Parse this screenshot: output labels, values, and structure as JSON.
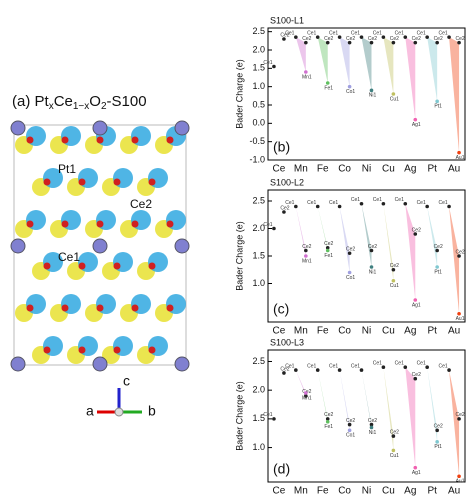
{
  "structure": {
    "title_parts": [
      "(a) Pt",
      "x",
      "Ce",
      "1−x",
      "O",
      "2",
      "-S100"
    ],
    "atom_labels": [
      "Pt1",
      "Ce2",
      "Ce1"
    ],
    "axes": [
      "a",
      "b",
      "c"
    ]
  },
  "chart_data": [
    {
      "type": "scatter",
      "title": "S100-L1",
      "panel_label": "(b)",
      "ylabel": "Bader Charge (e)",
      "categories": [
        "Ce",
        "Mn",
        "Fe",
        "Co",
        "Ni",
        "Cu",
        "Ag",
        "Pt",
        "Au"
      ],
      "category_colors": [
        "#222222",
        "#d070d0",
        "#60c060",
        "#a0a0e0",
        "#408080",
        "#c0c060",
        "#f060b0",
        "#80c8d0",
        "#f04010"
      ],
      "ylim": [
        -1.0,
        2.6
      ],
      "yticks": [
        {
          "value": -1.0,
          "label": "-1.0"
        },
        {
          "value": -0.5,
          "label": "-0.5"
        },
        {
          "value": 0.0,
          "label": "0.0"
        },
        {
          "value": 0.5,
          "label": "0.5"
        },
        {
          "value": 1.0,
          "label": "1.0"
        },
        {
          "value": 1.5,
          "label": "1.5"
        },
        {
          "value": 2.0,
          "label": "2.0"
        },
        {
          "value": 2.5,
          "label": "2.5"
        }
      ],
      "series": [
        {
          "values": [
            1.55,
            2.35,
            2.35,
            2.35,
            2.35,
            2.35,
            2.35,
            2.35,
            2.35
          ],
          "point_labels": [
            "Ce1",
            "Ce1",
            "Ce1",
            "Ce1",
            "Ce1",
            "Ce1",
            "Ce1",
            "Ce1",
            "Ce1"
          ]
        },
        {
          "values": [
            2.3,
            2.2,
            2.2,
            2.2,
            2.2,
            2.2,
            2.2,
            2.2,
            2.2
          ],
          "point_labels": [
            "Ce2",
            "Ce2",
            "Ce2",
            "Ce2",
            "Ce2",
            "Ce2",
            "Ce2",
            "Ce2",
            "Ce2"
          ]
        },
        {
          "values": [
            null,
            1.4,
            1.1,
            1.0,
            0.9,
            0.8,
            0.1,
            0.6,
            -0.8
          ],
          "point_labels": [
            null,
            "Mn1",
            "Fe1",
            "Co1",
            "Ni1",
            "Cu1",
            "Ag1",
            "Pt1",
            "Au1"
          ]
        }
      ]
    },
    {
      "type": "scatter",
      "title": "S100-L2",
      "panel_label": "(c)",
      "ylabel": "Bader Charge (e)",
      "categories": [
        "Ce",
        "Mn",
        "Fe",
        "Co",
        "Ni",
        "Cu",
        "Ag",
        "Pt",
        "Au"
      ],
      "category_colors": [
        "#222222",
        "#d070d0",
        "#60c060",
        "#a0a0e0",
        "#408080",
        "#c0c060",
        "#f060b0",
        "#80c8d0",
        "#f04010"
      ],
      "ylim": [
        0.3,
        2.7
      ],
      "yticks": [
        {
          "value": 1.0,
          "label": "1.0"
        },
        {
          "value": 1.5,
          "label": "1.5"
        },
        {
          "value": 2.0,
          "label": "2.0"
        },
        {
          "value": 2.5,
          "label": "2.5"
        }
      ],
      "series": [
        {
          "values": [
            2.0,
            2.4,
            2.4,
            2.4,
            2.45,
            2.45,
            2.45,
            2.4,
            2.4
          ],
          "point_labels": [
            "Ce1",
            "Ce1",
            "Ce1",
            "Ce1",
            "Ce1",
            "Ce1",
            "Ce1",
            "Ce1",
            "Ce1"
          ]
        },
        {
          "values": [
            2.3,
            1.6,
            1.65,
            1.55,
            1.6,
            1.25,
            1.9,
            1.6,
            1.5
          ],
          "point_labels": [
            "Ce2",
            "Ce2",
            "Ce2",
            "Ce2",
            "Ce2",
            "Ce2",
            "Ce2",
            "Ce2",
            "Ce2"
          ]
        },
        {
          "values": [
            null,
            1.5,
            1.6,
            1.2,
            1.3,
            1.05,
            0.7,
            1.3,
            0.45
          ],
          "point_labels": [
            null,
            "Mn1",
            "Fe1",
            "Co1",
            "Ni1",
            "Cu1",
            "Ag1",
            "Pt1",
            "Au1"
          ]
        }
      ]
    },
    {
      "type": "scatter",
      "title": "S100-L3",
      "panel_label": "(d)",
      "ylabel": "Bader Charge (e)",
      "categories": [
        "Ce",
        "Mn",
        "Fe",
        "Co",
        "Ni",
        "Cu",
        "Ag",
        "Pt",
        "Au"
      ],
      "category_colors": [
        "#222222",
        "#d070d0",
        "#60c060",
        "#a0a0e0",
        "#408080",
        "#c0c060",
        "#f060b0",
        "#80c8d0",
        "#f04010"
      ],
      "ylim": [
        0.4,
        2.7
      ],
      "yticks": [
        {
          "value": 1.0,
          "label": "1.0"
        },
        {
          "value": 1.5,
          "label": "1.5"
        },
        {
          "value": 2.0,
          "label": "2.0"
        },
        {
          "value": 2.5,
          "label": "2.5"
        }
      ],
      "series": [
        {
          "values": [
            1.5,
            2.35,
            2.35,
            2.35,
            2.35,
            2.4,
            2.4,
            2.4,
            2.35
          ],
          "point_labels": [
            "Ce1",
            "Ce1",
            "Ce1",
            "Ce1",
            "Ce1",
            "Ce1",
            "Ce1",
            "Ce1",
            "Ce1"
          ]
        },
        {
          "values": [
            2.3,
            1.9,
            1.5,
            1.4,
            1.4,
            1.2,
            2.2,
            1.3,
            1.5
          ],
          "point_labels": [
            "Ce2",
            "Ce2",
            "Ce2",
            "Ce2",
            "Ce2",
            "Ce2",
            "Ce2",
            "Ce2",
            "Ce2"
          ]
        },
        {
          "values": [
            null,
            1.95,
            1.45,
            1.3,
            1.35,
            0.95,
            0.65,
            1.1,
            0.5
          ],
          "point_labels": [
            null,
            "Mn1",
            "Fe1",
            "Co1",
            "Ni1",
            "Cu1",
            "Ag1",
            "Pt1",
            "Au1"
          ]
        }
      ]
    }
  ]
}
